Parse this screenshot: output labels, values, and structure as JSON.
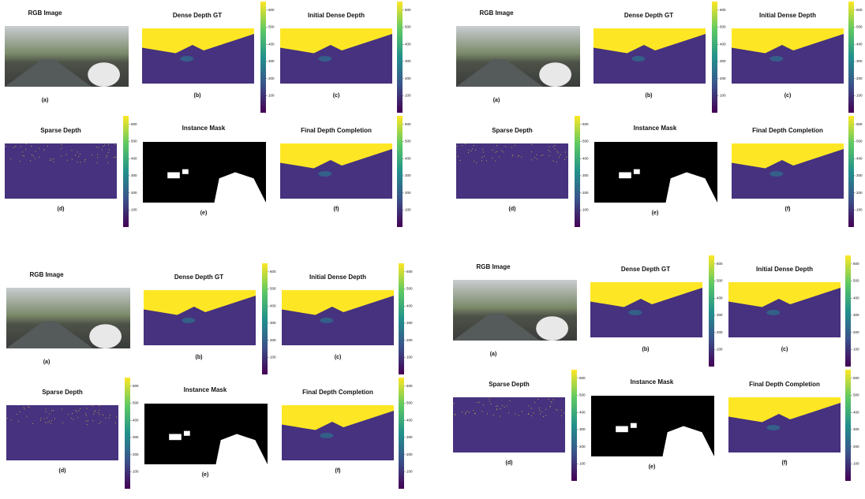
{
  "panels": [
    {
      "subplots": [
        {
          "title": "RGB Image",
          "caption": "(a)"
        },
        {
          "title": "Dense Depth GT",
          "caption": "(b)"
        },
        {
          "title": "Initial Dense Depth",
          "caption": "(c)"
        },
        {
          "title": "Sparse Depth",
          "caption": "(d)"
        },
        {
          "title": "Instance Mask",
          "caption": "(e)"
        },
        {
          "title": "Final Depth Completion",
          "caption": "(f)"
        }
      ],
      "colorbar_ticks": [
        100,
        200,
        300,
        400,
        500,
        600
      ]
    },
    {
      "subplots": [
        {
          "title": "RGB Image",
          "caption": "(a)"
        },
        {
          "title": "Dense Depth GT",
          "caption": "(b)"
        },
        {
          "title": "Initial Dense Depth",
          "caption": "(c)"
        },
        {
          "title": "Sparse Depth",
          "caption": "(d)"
        },
        {
          "title": "Instance Mask",
          "caption": "(e)"
        },
        {
          "title": "Final Depth Completion",
          "caption": "(f)"
        }
      ],
      "colorbar_ticks": [
        100,
        200,
        300,
        400,
        500,
        600
      ]
    },
    {
      "subplots": [
        {
          "title": "RGB Image",
          "caption": "(a)"
        },
        {
          "title": "Dense Depth GT",
          "caption": "(b)"
        },
        {
          "title": "Initial Dense Depth",
          "caption": "(c)"
        },
        {
          "title": "Sparse Depth",
          "caption": "(d)"
        },
        {
          "title": "Instance Mask",
          "caption": "(e)"
        },
        {
          "title": "Final Depth Completion",
          "caption": "(f)"
        }
      ],
      "colorbar_ticks": [
        100,
        200,
        300,
        400,
        500,
        600
      ]
    },
    {
      "subplots": [
        {
          "title": "RGB Image",
          "caption": "(a)"
        },
        {
          "title": "Dense Depth GT",
          "caption": "(b)"
        },
        {
          "title": "Initial Dense Depth",
          "caption": "(c)"
        },
        {
          "title": "Sparse Depth",
          "caption": "(d)"
        },
        {
          "title": "Instance Mask",
          "caption": "(e)"
        },
        {
          "title": "Final Depth Completion",
          "caption": "(f)"
        }
      ],
      "colorbar_ticks": [
        100,
        200,
        300,
        400,
        500,
        600
      ]
    }
  ]
}
